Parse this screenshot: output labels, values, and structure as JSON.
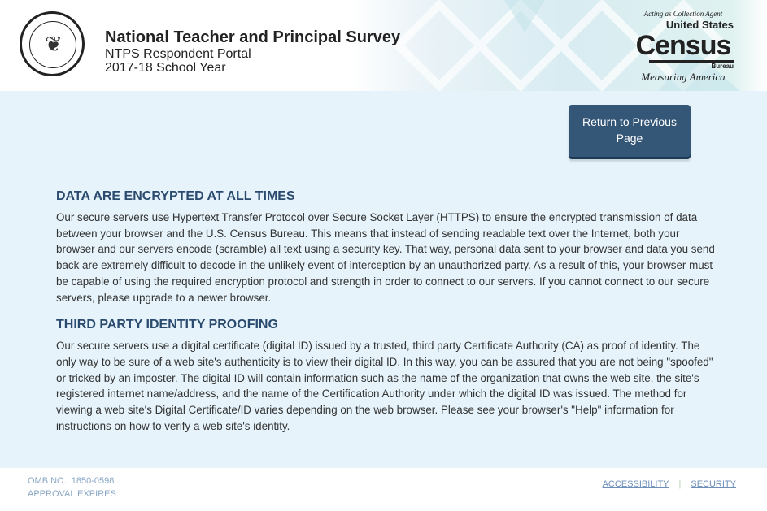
{
  "header": {
    "title": "National Teacher and Principal Survey",
    "subtitle": "NTPS Respondent Portal",
    "school_year": "2017-18 School Year",
    "seal_text": "DEPARTMENT OF EDUCATION · UNITED STATES OF AMERICA",
    "census_logo": {
      "tagline": "Acting as Collection Agent",
      "line1": "United States",
      "line2": "Census",
      "line3": "Bureau",
      "slogan": "Measuring America"
    }
  },
  "main": {
    "return_button": "Return to Previous Page",
    "sections": [
      {
        "heading": "DATA ARE ENCRYPTED AT ALL TIMES",
        "body": "Our secure servers use Hypertext Transfer Protocol over Secure Socket Layer (HTTPS) to ensure the encrypted transmission of data between your browser and the U.S. Census Bureau. This means that instead of sending readable text over the Internet, both your browser and our servers encode (scramble) all text using a security key. That way, personal data sent to your browser and data you send back are extremely difficult to decode in the unlikely event of interception by an unauthorized party. As a result of this, your browser must be capable of using the required encryption protocol and strength in order to connect to our servers. If you cannot connect to our secure servers, please upgrade to a newer browser."
      },
      {
        "heading": "THIRD PARTY IDENTITY PROOFING",
        "body": "Our secure servers use a digital certificate (digital ID) issued by a trusted, third party Certificate Authority (CA) as proof of identity. The only way to be sure of a web site's authenticity is to view their digital ID. In this way, you can be assured that you are not being \"spoofed\" or tricked by an imposter. The digital ID will contain information such as the name of the organization that owns the web site, the site's registered internet name/address, and the name of the Certification Authority under which the digital ID was issued. The method for viewing a web site's Digital Certificate/ID varies depending on the web browser. Please see your browser's \"Help\" information for instructions on how to verify a web site's identity."
      }
    ]
  },
  "footer": {
    "omb": "OMB NO.: 1850-0598",
    "approval": "APPROVAL EXPIRES:",
    "accessibility": "ACCESSIBILITY",
    "separator": "|",
    "security": "SECURITY"
  }
}
